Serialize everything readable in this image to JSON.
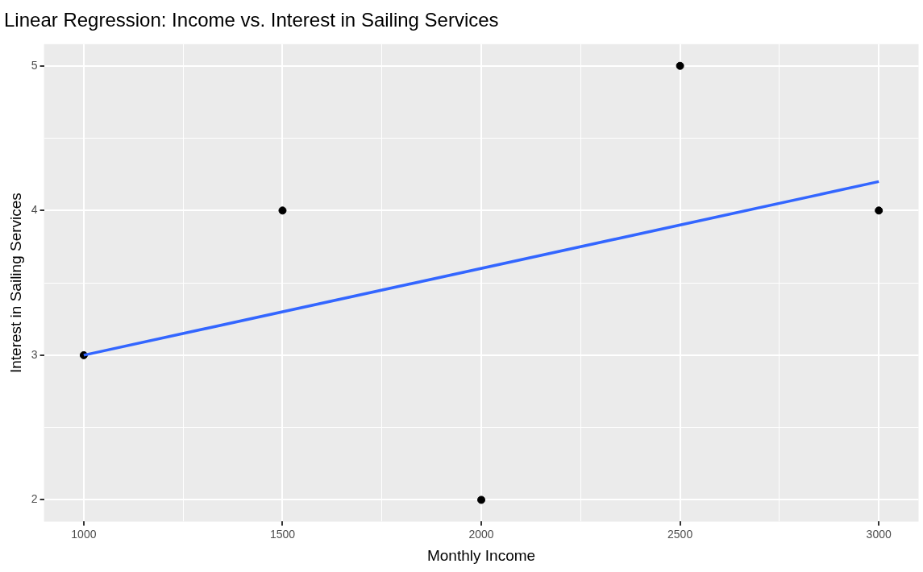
{
  "chart_data": {
    "type": "scatter",
    "title": "Linear Regression: Income vs. Interest in Sailing Services",
    "xlabel": "Monthly Income",
    "ylabel": "Interest in Sailing Services",
    "series": [
      {
        "type": "scatter",
        "color": "#000000",
        "x": [
          1000,
          1500,
          2000,
          2500,
          3000
        ],
        "values": [
          3,
          4,
          2,
          5,
          4
        ],
        "marker": "circle"
      },
      {
        "type": "line",
        "color": "#3366ff",
        "x": [
          1000,
          3000
        ],
        "values": [
          3.0,
          4.2
        ],
        "marker": "none"
      }
    ],
    "xlim": [
      900,
      3100
    ],
    "xticks": [
      1000,
      {
        "value": 1250,
        "label": null
      },
      1500,
      {
        "value": 1750,
        "label": null
      },
      2000,
      {
        "value": 2250,
        "label": null
      },
      2500,
      {
        "value": 2750,
        "label": null
      },
      3000
    ],
    "ylim": [
      1.85,
      5.15
    ],
    "yticks": [
      2,
      {
        "value": 2.5,
        "label": null
      },
      3,
      {
        "value": 3.5,
        "label": null
      },
      4,
      {
        "value": 4.5,
        "label": null
      },
      5
    ],
    "grid": true,
    "legend": false
  }
}
